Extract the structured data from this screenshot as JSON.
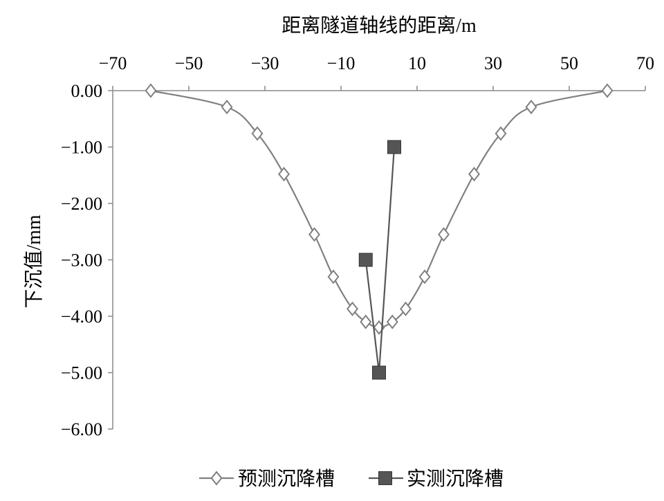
{
  "chart_data": {
    "type": "line",
    "title": "",
    "xlabel": "距离隧道轴线的距离/m",
    "ylabel": "下沉值/mm",
    "xlim": [
      -70,
      70
    ],
    "ylim": [
      -6,
      0
    ],
    "x_ticks": [
      "−70",
      "−50",
      "−30",
      "−10",
      "10",
      "30",
      "50",
      "70"
    ],
    "x_tick_values": [
      -70,
      -50,
      -30,
      -10,
      10,
      30,
      50,
      70
    ],
    "y_ticks": [
      "0.00",
      "−1.00",
      "−2.00",
      "−3.00",
      "−4.00",
      "−5.00",
      "−6.00"
    ],
    "y_tick_values": [
      0,
      -1,
      -2,
      -3,
      -4,
      -5,
      -6
    ],
    "x_axis_position": "top",
    "grid": false,
    "legend_position": "bottom",
    "series": [
      {
        "name": "预测沉降槽",
        "marker": "diamond-open",
        "smooth": true,
        "color": "#808080",
        "points": [
          [
            -60,
            0.0
          ],
          [
            -40,
            -0.29
          ],
          [
            -32,
            -0.76
          ],
          [
            -25,
            -1.48
          ],
          [
            -17,
            -2.55
          ],
          [
            -12,
            -3.3
          ],
          [
            -7,
            -3.87
          ],
          [
            -3.5,
            -4.1
          ],
          [
            0,
            -4.2
          ],
          [
            3.5,
            -4.1
          ],
          [
            7,
            -3.87
          ],
          [
            12,
            -3.3
          ],
          [
            17,
            -2.55
          ],
          [
            25,
            -1.48
          ],
          [
            32,
            -0.76
          ],
          [
            40,
            -0.29
          ],
          [
            60,
            0.0
          ]
        ]
      },
      {
        "name": "实测沉降槽",
        "marker": "square-filled",
        "smooth": false,
        "color": "#555555",
        "points": [
          [
            -3.5,
            -3.0
          ],
          [
            0,
            -5.0
          ],
          [
            4,
            -1.0
          ]
        ]
      }
    ]
  }
}
